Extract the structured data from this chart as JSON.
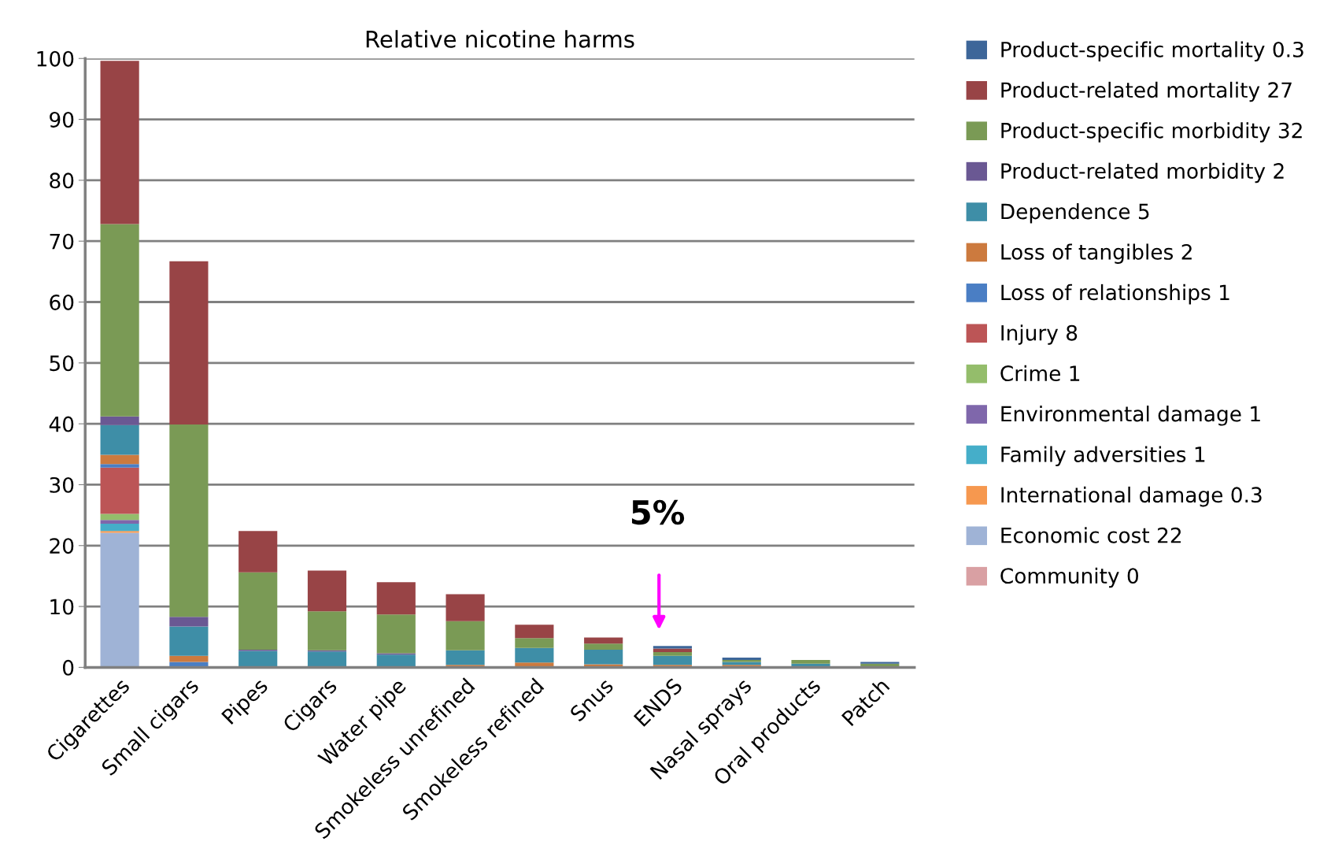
{
  "chart_data": {
    "type": "bar",
    "stacked": true,
    "title": "Relative nicotine harms",
    "categories": [
      "Cigarettes",
      "Small cigars",
      "Pipes",
      "Cigars",
      "Water pipe",
      "Smokeless unrefined",
      "Smokeless refined",
      "Snus",
      "ENDS",
      "Nasal sprays",
      "Oral products",
      "Patch"
    ],
    "series": [
      {
        "name": "Economic cost 22",
        "color": "#9fb3d6",
        "values": [
          22.1,
          0,
          0,
          0,
          0,
          0,
          0,
          0,
          0,
          0,
          0,
          0
        ]
      },
      {
        "name": "International damage 0.3",
        "color": "#f6984f",
        "values": [
          0.3,
          0,
          0,
          0,
          0,
          0,
          0,
          0,
          0,
          0,
          0,
          0
        ]
      },
      {
        "name": "Family adversities 1",
        "color": "#45aec9",
        "values": [
          1.2,
          0,
          0,
          0,
          0,
          0,
          0,
          0,
          0,
          0,
          0,
          0
        ]
      },
      {
        "name": "Environmental damage 1",
        "color": "#7f67ab",
        "values": [
          0.6,
          0,
          0,
          0,
          0,
          0,
          0,
          0,
          0,
          0,
          0,
          0
        ]
      },
      {
        "name": "Crime 1",
        "color": "#94bd6b",
        "values": [
          1.0,
          0,
          0,
          0,
          0,
          0,
          0,
          0,
          0,
          0,
          0,
          0
        ]
      },
      {
        "name": "Injury 8",
        "color": "#bc5556",
        "values": [
          7.6,
          0,
          0,
          0,
          0,
          0,
          0,
          0,
          0,
          0,
          0,
          0
        ]
      },
      {
        "name": "Loss of relationships 1",
        "color": "#4a7ec4",
        "values": [
          0.6,
          0.9,
          0,
          0,
          0,
          0,
          0,
          0,
          0,
          0,
          0,
          0
        ]
      },
      {
        "name": "Loss of tangibles 2",
        "color": "#cc7a3e",
        "values": [
          1.5,
          1.0,
          0,
          0,
          0,
          0.4,
          0.8,
          0.5,
          0.4,
          0.4,
          0,
          0
        ]
      },
      {
        "name": "Dependence 5",
        "color": "#3e8ea7",
        "values": [
          4.9,
          4.8,
          2.7,
          2.6,
          2.1,
          2.4,
          2.4,
          2.4,
          1.5,
          0.5,
          0.6,
          0
        ]
      },
      {
        "name": "Product-related morbidity 2",
        "color": "#6a5893",
        "values": [
          1.4,
          1.6,
          0.2,
          0.2,
          0.2,
          0,
          0,
          0,
          0,
          0,
          0,
          0
        ]
      },
      {
        "name": "Product-specific morbidity 32",
        "color": "#7a9a55",
        "values": [
          31.6,
          31.6,
          12.7,
          6.4,
          6.4,
          4.8,
          1.6,
          1.0,
          0.6,
          0.3,
          0.6,
          0.6
        ]
      },
      {
        "name": "Product-related mortality 27",
        "color": "#984446",
        "values": [
          26.8,
          26.8,
          6.8,
          6.7,
          5.3,
          4.4,
          2.2,
          1.0,
          0.6,
          0,
          0,
          0
        ]
      },
      {
        "name": "Product-specific mortality 0.3",
        "color": "#3d6699",
        "values": [
          0,
          0,
          0,
          0,
          0,
          0,
          0,
          0,
          0.4,
          0.4,
          0,
          0.3
        ]
      },
      {
        "name": "Community 0",
        "color": "#d9a0a3",
        "values": [
          0,
          0,
          0,
          0,
          0,
          0,
          0,
          0,
          0,
          0,
          0,
          0
        ]
      }
    ],
    "ylim": [
      0,
      100
    ],
    "yticks": [
      0,
      10,
      20,
      30,
      40,
      50,
      60,
      70,
      80,
      90,
      100
    ],
    "grid": "y",
    "legend": "right",
    "annotations": [
      "5%"
    ]
  }
}
